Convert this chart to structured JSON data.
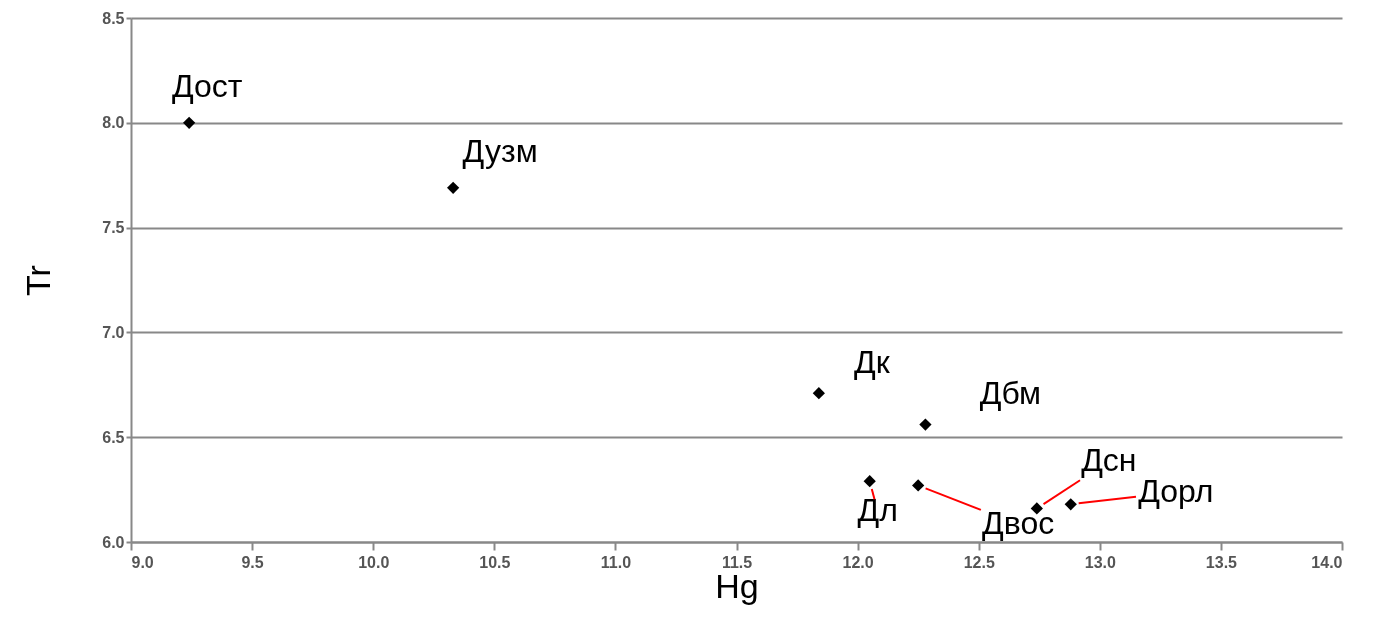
{
  "chart_data": {
    "type": "scatter",
    "xlabel": "Hg",
    "ylabel": "Tr",
    "x": [
      9.24,
      10.33,
      11.84,
      12.28,
      12.05,
      12.25,
      12.74,
      12.88
    ],
    "series": [
      {
        "color": "#000000",
        "values": [
          8.0,
          7.69,
          6.71,
          6.56,
          6.29,
          6.27,
          6.16,
          6.18
        ]
      }
    ],
    "xlim": [
      9.0,
      14.0
    ],
    "xticks": [
      {
        "value": 9,
        "label": "9.0"
      },
      {
        "value": 9.5,
        "label": "9.5"
      },
      {
        "value": 10,
        "label": "10.0"
      },
      {
        "value": 10.5,
        "label": "10.5"
      },
      {
        "value": 11,
        "label": "11.0"
      },
      {
        "value": 11.5,
        "label": "11.5"
      },
      {
        "value": 12,
        "label": "12.0"
      },
      {
        "value": 12.5,
        "label": "12.5"
      },
      {
        "value": 13,
        "label": "13.0"
      },
      {
        "value": 13.5,
        "label": "13.5"
      },
      {
        "value": 14,
        "label": "14.0"
      }
    ],
    "ylim": [
      6.0,
      8.5
    ],
    "yticks": [
      {
        "value": 6,
        "label": "6.0"
      },
      {
        "value": 6.5,
        "label": "6.5"
      },
      {
        "value": 7,
        "label": "7.0"
      },
      {
        "value": 7.5,
        "label": "7.5"
      },
      {
        "value": 8,
        "label": "8.0"
      },
      {
        "value": 8.5,
        "label": "8.5"
      }
    ],
    "grid": "y",
    "marker": "diamond",
    "annotations": [
      {
        "text": "Дост",
        "x": 9.24,
        "y": 8.0
      },
      {
        "text": "Дузм",
        "x": 10.33,
        "y": 7.69
      },
      {
        "text": "Дк",
        "x": 11.84,
        "y": 6.71
      },
      {
        "text": "Дбм",
        "x": 12.28,
        "y": 6.56
      },
      {
        "text": "Дл",
        "x": 12.05,
        "y": 6.29
      },
      {
        "text": "Двос",
        "x": 12.25,
        "y": 6.27
      },
      {
        "text": "Дсн",
        "x": 12.74,
        "y": 6.16
      },
      {
        "text": "Дорл",
        "x": 12.88,
        "y": 6.18
      }
    ]
  }
}
